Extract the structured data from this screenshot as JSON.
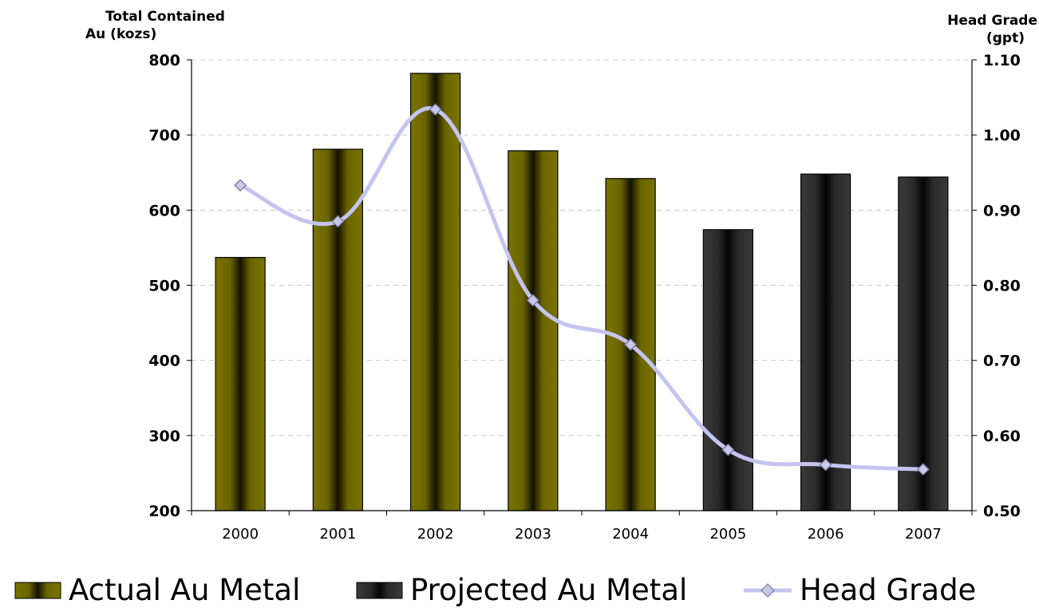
{
  "chart_data": {
    "type": "bar",
    "categories": [
      "2000",
      "2001",
      "2002",
      "2003",
      "2004",
      "2005",
      "2006",
      "2007"
    ],
    "series": [
      {
        "name": "Actual Au Metal",
        "kind": "bar",
        "axis": "left",
        "values": [
          537,
          681,
          782,
          679,
          642,
          null,
          null,
          null
        ],
        "color": "#7a7400"
      },
      {
        "name": "Projected Au Metal",
        "kind": "bar",
        "axis": "left",
        "values": [
          null,
          null,
          null,
          null,
          null,
          574,
          648,
          644
        ],
        "color": "#333333"
      },
      {
        "name": "Head Grade",
        "kind": "line",
        "axis": "right",
        "values": [
          0.933,
          0.885,
          1.034,
          0.78,
          0.721,
          0.581,
          0.561,
          0.555
        ],
        "color": "#c4c4f0",
        "marker": "diamond"
      }
    ],
    "ylabel_left": [
      "Total Contained",
      "Au (kozs)"
    ],
    "ylabel_right": [
      "Head Grade",
      "(gpt)"
    ],
    "ylim_left": [
      200,
      800
    ],
    "yticks_left": [
      "200",
      "300",
      "400",
      "500",
      "600",
      "700",
      "800"
    ],
    "ylim_right": [
      0.5,
      1.1
    ],
    "yticks_right": [
      "0.50",
      "0.60",
      "0.70",
      "0.80",
      "0.90",
      "1.00",
      "1.10"
    ],
    "grid": "horizontal dashed",
    "legend": {
      "position": "bottom",
      "entries": [
        "Actual Au Metal",
        "Projected Au Metal",
        "Head Grade"
      ]
    }
  }
}
